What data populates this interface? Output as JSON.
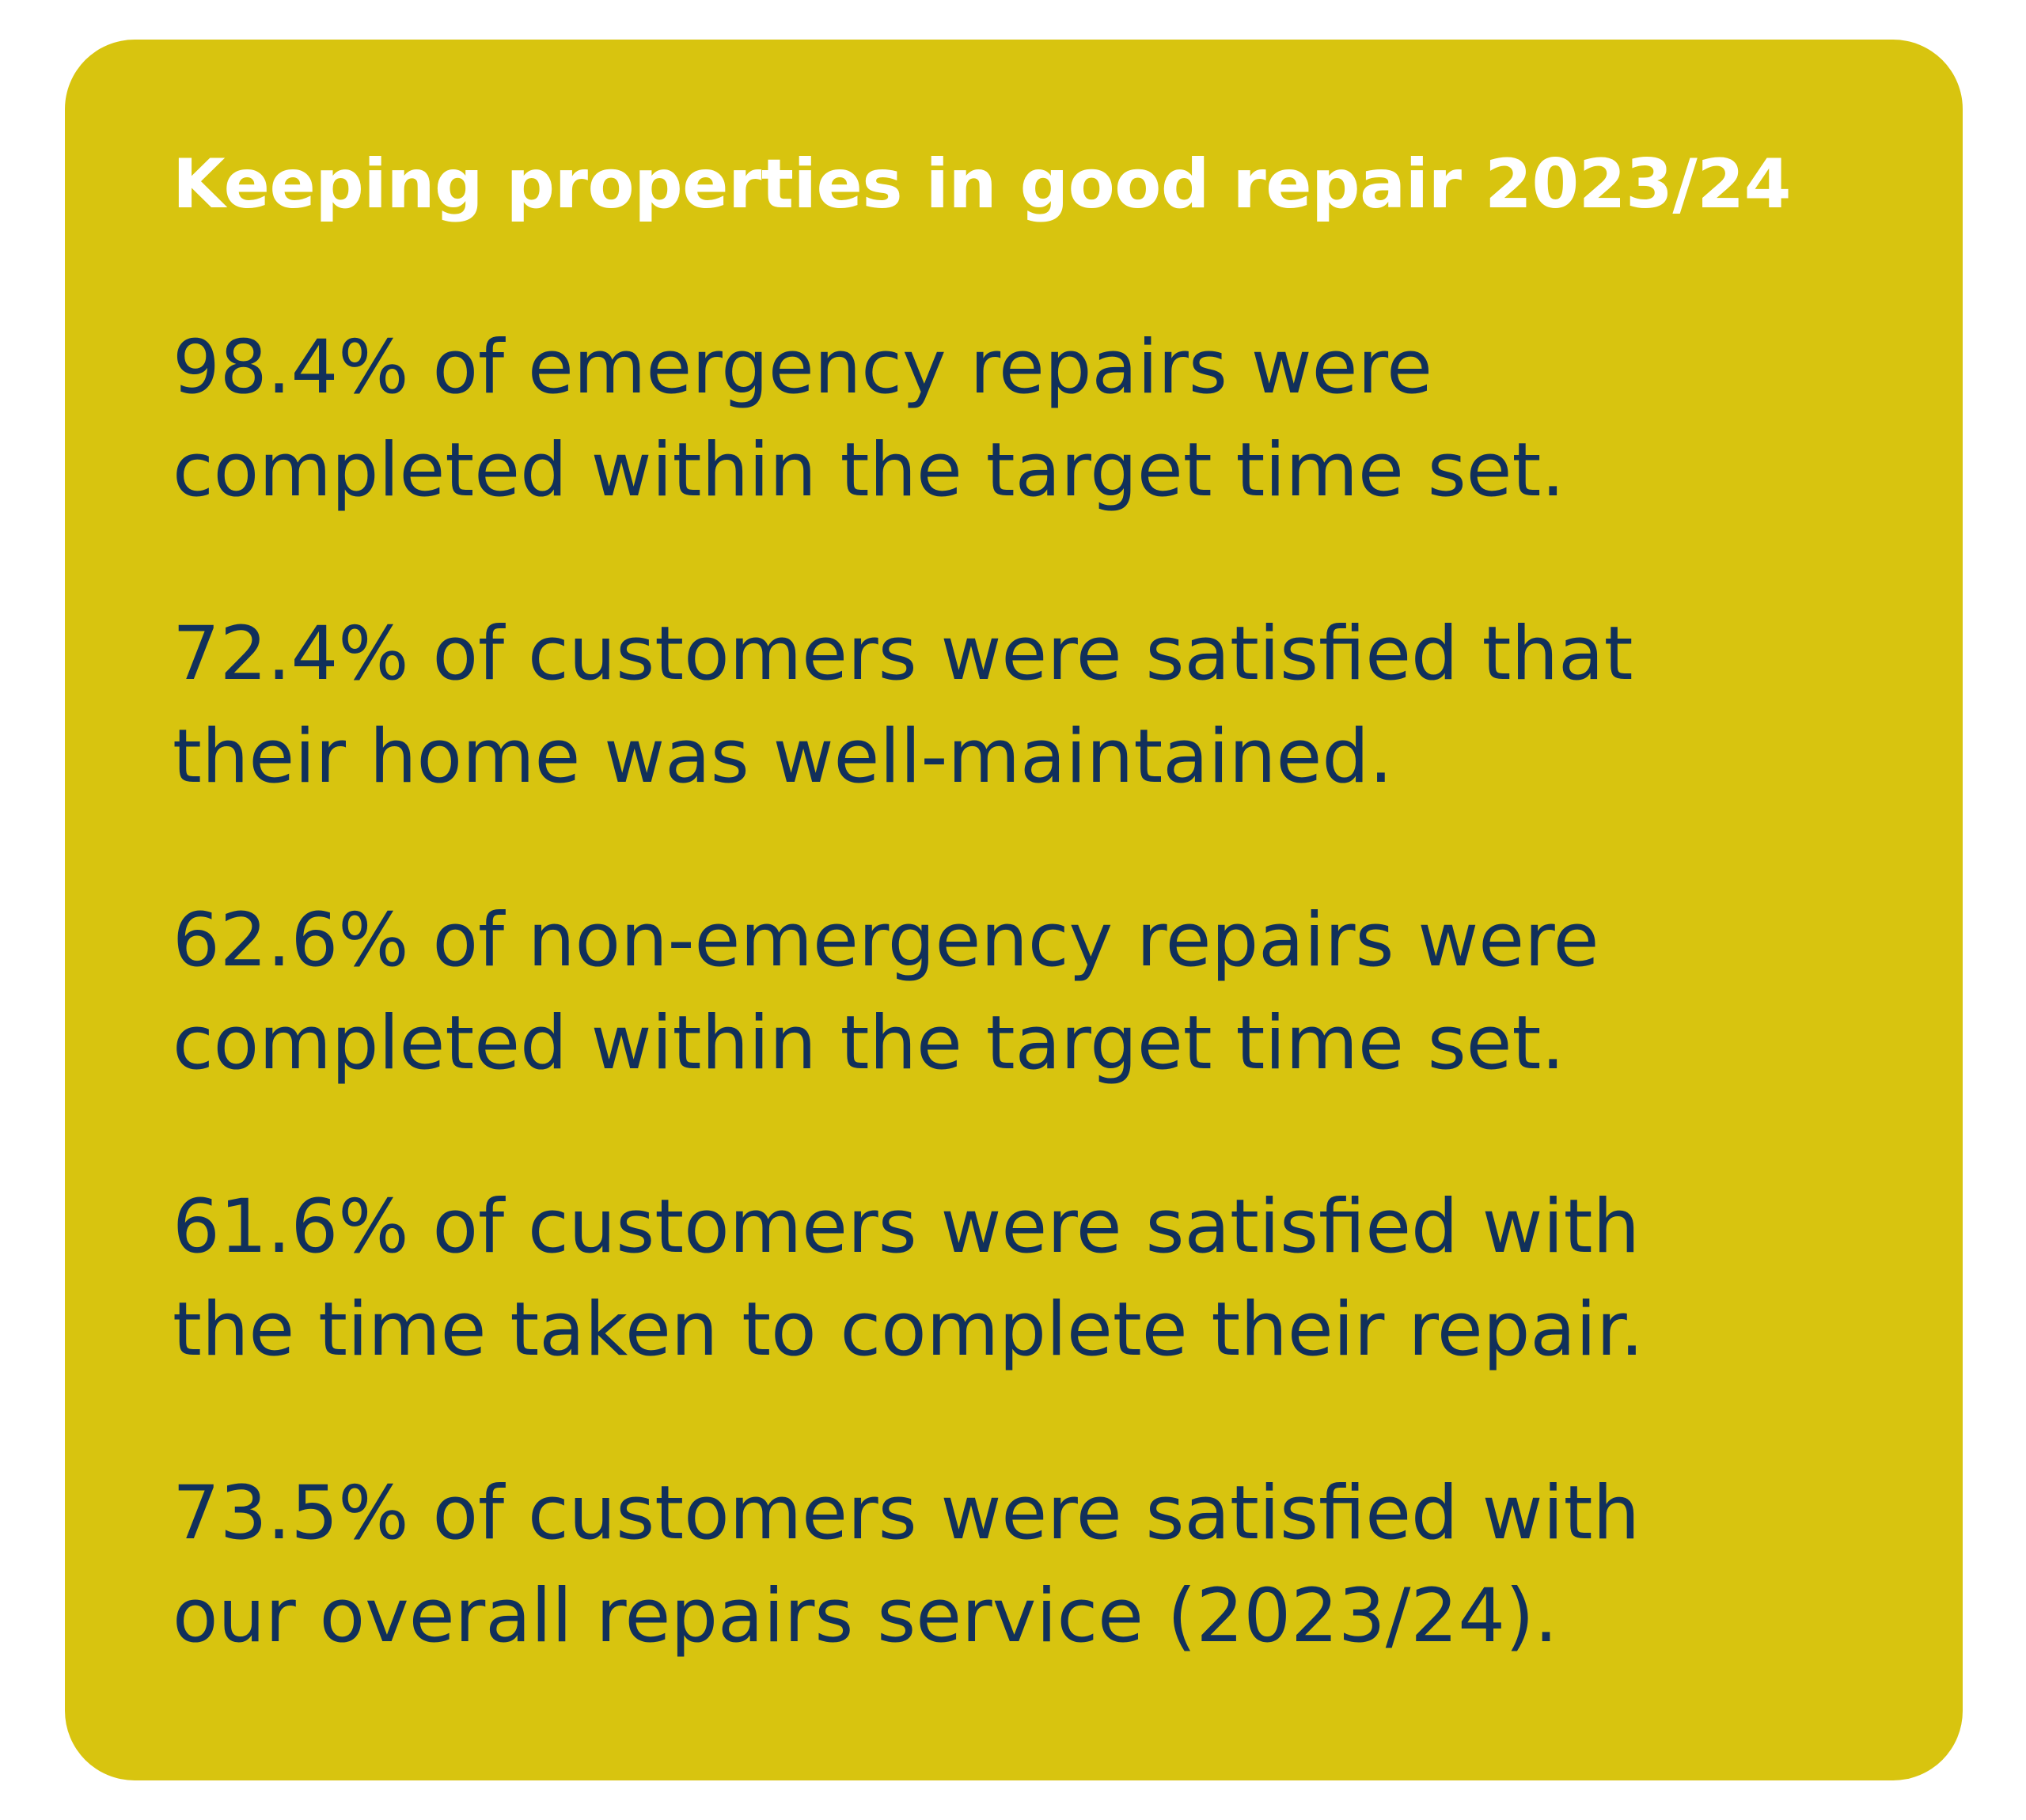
{
  "panel": {
    "title": "Keeping properties in good repair 2023/24",
    "background_color": "#d8c40f",
    "title_color": "#ffffff",
    "text_color": "#11305a",
    "stats": [
      {
        "line1": "98.4% of emergency repairs were",
        "line2": "completed within the target time set."
      },
      {
        "line1": "72.4% of customers were satisfied that",
        "line2": "their home was well-maintained."
      },
      {
        "line1": "62.6% of non-emergency repairs were",
        "line2": "completed within the target time set."
      },
      {
        "line1": "61.6% of customers were satisfied with",
        "line2": "the time taken to complete their repair."
      },
      {
        "line1": "73.5% of customers were satisfied with",
        "line2": "our overall repairs service (2023/24)."
      }
    ]
  }
}
